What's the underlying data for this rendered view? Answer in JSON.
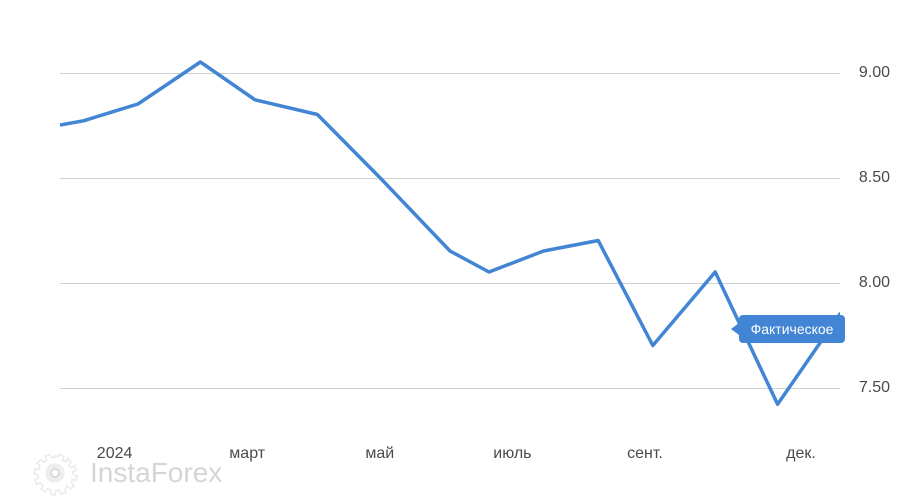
{
  "chart": {
    "type": "line",
    "line_color": "#4285d4",
    "line_width": 3.5,
    "background_color": "#ffffff",
    "grid_color": "#d0d0d0",
    "text_color": "#4a4a4a",
    "label_fontsize": 16,
    "ylim": [
      7.25,
      9.25
    ],
    "y_ticks": [
      7.5,
      8.0,
      8.5,
      9.0
    ],
    "y_labels": [
      "7.50",
      "8.00",
      "8.50",
      "9.00"
    ],
    "x_labels": [
      "2024",
      "март",
      "май",
      "июль",
      "сент.",
      "дек."
    ],
    "x_positions": [
      7,
      24,
      41,
      58,
      75,
      95
    ],
    "data_points": [
      {
        "x": 0,
        "y": 8.75
      },
      {
        "x": 3,
        "y": 8.77
      },
      {
        "x": 10,
        "y": 8.85
      },
      {
        "x": 18,
        "y": 9.05
      },
      {
        "x": 25,
        "y": 8.87
      },
      {
        "x": 33,
        "y": 8.8
      },
      {
        "x": 41,
        "y": 8.5
      },
      {
        "x": 50,
        "y": 8.15
      },
      {
        "x": 55,
        "y": 8.05
      },
      {
        "x": 62,
        "y": 8.15
      },
      {
        "x": 69,
        "y": 8.2
      },
      {
        "x": 76,
        "y": 7.7
      },
      {
        "x": 84,
        "y": 8.05
      },
      {
        "x": 92,
        "y": 7.42
      },
      {
        "x": 100,
        "y": 7.85
      }
    ]
  },
  "tooltip": {
    "label": "Фактическое",
    "bg_color": "#4285d4",
    "text_color": "#ffffff",
    "fontsize": 14,
    "position_x": 87,
    "position_y": 7.78
  },
  "watermark": {
    "text_insta": "Insta",
    "text_forex": "Forex",
    "color": "#888888",
    "fontsize": 28
  }
}
